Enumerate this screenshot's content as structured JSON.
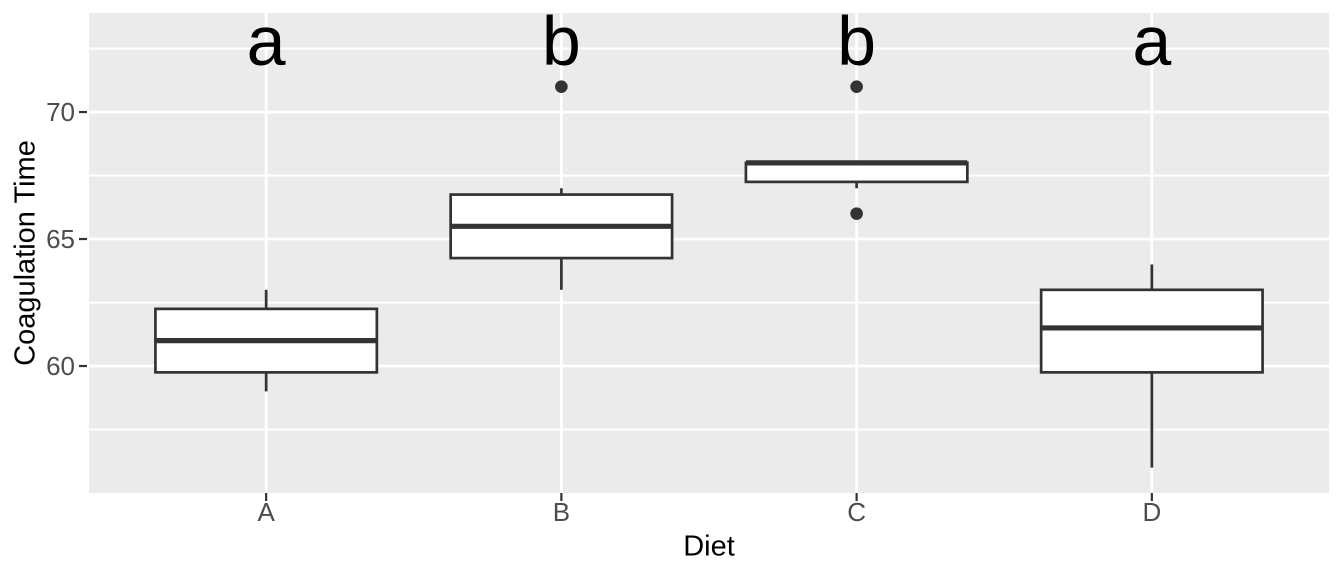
{
  "chart_data": {
    "type": "boxplot",
    "title": "",
    "xlabel": "Diet",
    "ylabel": "Coagulation Time",
    "categories": [
      "A",
      "B",
      "C",
      "D"
    ],
    "significance_letters": [
      "a",
      "b",
      "b",
      "a"
    ],
    "letters_y": 72.8,
    "y_ticks": [
      60,
      65,
      70
    ],
    "y_minor_ticks": [
      57.5,
      62.5,
      67.5,
      72.5
    ],
    "ylim": [
      55,
      73.9
    ],
    "grid": true,
    "legend": false,
    "series": [
      {
        "category": "A",
        "letter": "a",
        "whisker_low": 59,
        "q1": 59.75,
        "median": 61,
        "q3": 62.25,
        "whisker_high": 63,
        "outliers": []
      },
      {
        "category": "B",
        "letter": "b",
        "whisker_low": 63,
        "q1": 64.25,
        "median": 65.5,
        "q3": 66.75,
        "whisker_high": 67,
        "outliers": [
          71
        ]
      },
      {
        "category": "C",
        "letter": "b",
        "whisker_low": 67,
        "q1": 67.25,
        "median": 68,
        "q3": 68,
        "whisker_high": 68,
        "outliers": [
          66,
          71
        ]
      },
      {
        "category": "D",
        "letter": "a",
        "whisker_low": 56,
        "q1": 59.75,
        "median": 61.5,
        "q3": 63,
        "whisker_high": 64,
        "outliers": []
      }
    ],
    "colors": {
      "panel_bg": "#EBEBEB",
      "grid": "#FFFFFF",
      "box_stroke": "#333333",
      "box_fill": "#FFFFFF",
      "outlier": "#333333",
      "tick": "#333333",
      "axis_text": "#4D4D4D",
      "title_text": "#000000",
      "letter_text": "#000000"
    }
  }
}
